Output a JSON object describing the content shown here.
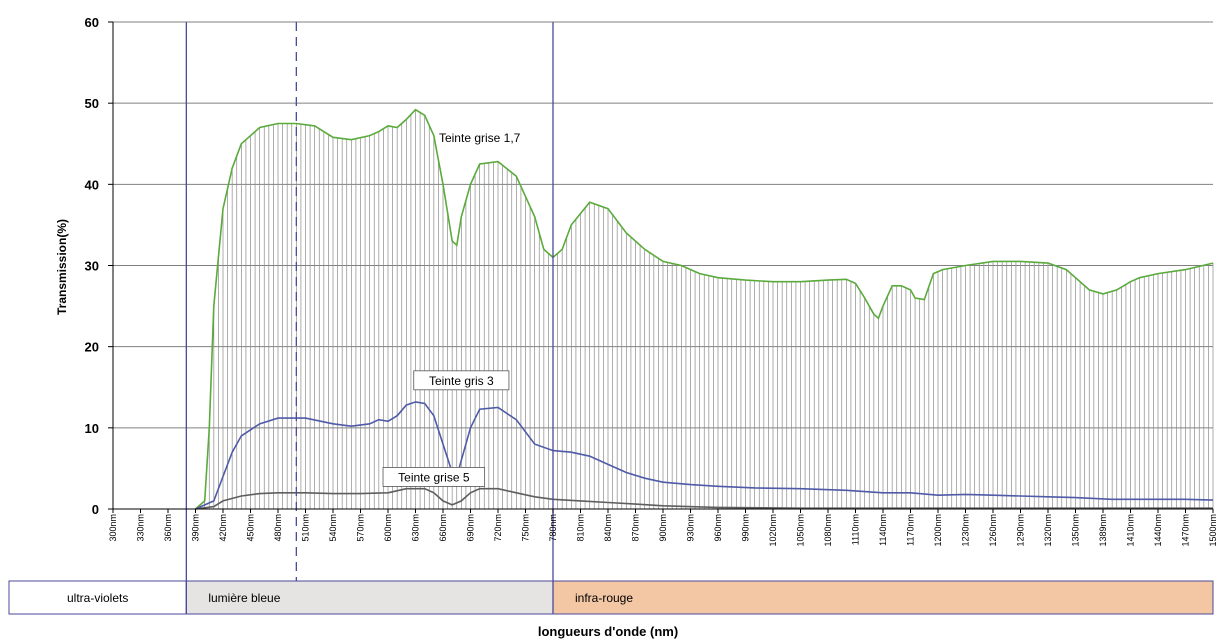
{
  "chart_data": {
    "type": "line",
    "title": "",
    "xlabel": "longueurs d'onde (nm)",
    "ylabel": "Transmission(%)",
    "ylim": [
      0,
      60
    ],
    "yticks": [
      0,
      10,
      20,
      30,
      40,
      50,
      60
    ],
    "xlim": [
      300,
      1500
    ],
    "xtick_labels": [
      "300nm",
      "330nm",
      "360nm",
      "390nm",
      "420nm",
      "450nm",
      "480nm",
      "510nm",
      "540nm",
      "570nm",
      "600nm",
      "630nm",
      "660nm",
      "690nm",
      "720nm",
      "750nm",
      "780nm",
      "810nm",
      "840nm",
      "870nm",
      "900nm",
      "930nm",
      "960nm",
      "990nm",
      "1020nm",
      "1050nm",
      "1080nm",
      "1110nm",
      "1140nm",
      "1170nm",
      "1200nm",
      "1230nm",
      "1260nm",
      "1290nm",
      "1320nm",
      "1350nm",
      "1389nm",
      "1410nm",
      "1440nm",
      "1470nm",
      "1500nm"
    ],
    "grid": true,
    "legend": "none",
    "vertical_markers": [
      {
        "x": 380,
        "style": "solid"
      },
      {
        "x": 500,
        "style": "dashed"
      },
      {
        "x": 780,
        "style": "solid"
      }
    ],
    "bands": [
      {
        "label": "ultra-violets",
        "from": 300,
        "to": 380,
        "color": "#ffffff"
      },
      {
        "label": "lumière bleue",
        "from": 380,
        "to": 780,
        "color": "#e6e3e3"
      },
      {
        "label": "infra-rouge",
        "from": 780,
        "to": 1500,
        "color": "#f4c7a4"
      }
    ],
    "series": [
      {
        "name": "Teinte grise 1,7",
        "color": "#5aaa3c",
        "points": [
          [
            390,
            0
          ],
          [
            400,
            1
          ],
          [
            405,
            10
          ],
          [
            410,
            25
          ],
          [
            420,
            37
          ],
          [
            430,
            42
          ],
          [
            440,
            45
          ],
          [
            460,
            47
          ],
          [
            480,
            47.5
          ],
          [
            500,
            47.5
          ],
          [
            520,
            47.2
          ],
          [
            540,
            45.8
          ],
          [
            560,
            45.5
          ],
          [
            580,
            46
          ],
          [
            590,
            46.5
          ],
          [
            600,
            47.2
          ],
          [
            610,
            47
          ],
          [
            620,
            48
          ],
          [
            630,
            49.2
          ],
          [
            640,
            48.5
          ],
          [
            650,
            46
          ],
          [
            660,
            40
          ],
          [
            670,
            33
          ],
          [
            675,
            32.5
          ],
          [
            680,
            36
          ],
          [
            690,
            40
          ],
          [
            700,
            42.5
          ],
          [
            720,
            42.8
          ],
          [
            740,
            41
          ],
          [
            760,
            36
          ],
          [
            770,
            32
          ],
          [
            780,
            31
          ],
          [
            790,
            32
          ],
          [
            800,
            35
          ],
          [
            820,
            37.8
          ],
          [
            840,
            37
          ],
          [
            860,
            34
          ],
          [
            880,
            32
          ],
          [
            900,
            30.5
          ],
          [
            920,
            30
          ],
          [
            940,
            29
          ],
          [
            960,
            28.5
          ],
          [
            990,
            28.2
          ],
          [
            1020,
            28
          ],
          [
            1050,
            28
          ],
          [
            1080,
            28.2
          ],
          [
            1100,
            28.3
          ],
          [
            1110,
            27.8
          ],
          [
            1120,
            26
          ],
          [
            1130,
            24
          ],
          [
            1135,
            23.5
          ],
          [
            1140,
            25
          ],
          [
            1150,
            27.5
          ],
          [
            1160,
            27.5
          ],
          [
            1170,
            27
          ],
          [
            1175,
            26
          ],
          [
            1185,
            25.8
          ],
          [
            1195,
            29
          ],
          [
            1205,
            29.5
          ],
          [
            1230,
            30
          ],
          [
            1260,
            30.5
          ],
          [
            1290,
            30.5
          ],
          [
            1320,
            30.3
          ],
          [
            1340,
            29.5
          ],
          [
            1350,
            28.5
          ],
          [
            1365,
            27
          ],
          [
            1380,
            26.5
          ],
          [
            1395,
            27
          ],
          [
            1410,
            28
          ],
          [
            1420,
            28.5
          ],
          [
            1440,
            29
          ],
          [
            1470,
            29.5
          ],
          [
            1500,
            30.3
          ]
        ]
      },
      {
        "name": "Teinte gris 3",
        "color": "#4f5aa8",
        "points": [
          [
            390,
            0
          ],
          [
            410,
            1
          ],
          [
            420,
            4
          ],
          [
            430,
            7
          ],
          [
            440,
            9
          ],
          [
            460,
            10.5
          ],
          [
            480,
            11.2
          ],
          [
            510,
            11.2
          ],
          [
            540,
            10.5
          ],
          [
            560,
            10.2
          ],
          [
            580,
            10.5
          ],
          [
            590,
            11
          ],
          [
            600,
            10.8
          ],
          [
            610,
            11.5
          ],
          [
            620,
            12.8
          ],
          [
            630,
            13.2
          ],
          [
            640,
            13
          ],
          [
            650,
            11.5
          ],
          [
            660,
            8
          ],
          [
            670,
            4.5
          ],
          [
            675,
            4
          ],
          [
            680,
            6
          ],
          [
            690,
            10
          ],
          [
            700,
            12.3
          ],
          [
            720,
            12.5
          ],
          [
            740,
            11
          ],
          [
            760,
            8
          ],
          [
            780,
            7.2
          ],
          [
            800,
            7
          ],
          [
            820,
            6.5
          ],
          [
            840,
            5.5
          ],
          [
            860,
            4.5
          ],
          [
            880,
            3.8
          ],
          [
            900,
            3.3
          ],
          [
            930,
            3
          ],
          [
            960,
            2.8
          ],
          [
            1000,
            2.6
          ],
          [
            1050,
            2.5
          ],
          [
            1100,
            2.3
          ],
          [
            1140,
            2
          ],
          [
            1170,
            2
          ],
          [
            1200,
            1.7
          ],
          [
            1230,
            1.8
          ],
          [
            1260,
            1.7
          ],
          [
            1290,
            1.6
          ],
          [
            1320,
            1.5
          ],
          [
            1350,
            1.4
          ],
          [
            1389,
            1.2
          ],
          [
            1410,
            1.2
          ],
          [
            1440,
            1.2
          ],
          [
            1470,
            1.2
          ],
          [
            1500,
            1.1
          ]
        ]
      },
      {
        "name": "Teinte grise 5",
        "color": "#5e5e5e",
        "points": [
          [
            390,
            0
          ],
          [
            410,
            0.3
          ],
          [
            420,
            1
          ],
          [
            440,
            1.6
          ],
          [
            460,
            1.9
          ],
          [
            480,
            2
          ],
          [
            510,
            2
          ],
          [
            540,
            1.9
          ],
          [
            570,
            1.9
          ],
          [
            600,
            2
          ],
          [
            620,
            2.5
          ],
          [
            640,
            2.5
          ],
          [
            650,
            2
          ],
          [
            660,
            1
          ],
          [
            670,
            0.5
          ],
          [
            680,
            1
          ],
          [
            690,
            2
          ],
          [
            700,
            2.5
          ],
          [
            720,
            2.5
          ],
          [
            740,
            2
          ],
          [
            760,
            1.5
          ],
          [
            780,
            1.2
          ],
          [
            810,
            1
          ],
          [
            840,
            0.8
          ],
          [
            870,
            0.6
          ],
          [
            900,
            0.4
          ],
          [
            960,
            0.2
          ],
          [
            1050,
            0.1
          ],
          [
            1200,
            0.1
          ],
          [
            1350,
            0.1
          ],
          [
            1500,
            0.1
          ]
        ]
      }
    ],
    "annotations": [
      {
        "text": "Teinte grise 1,7",
        "x": 700,
        "y": 45.2,
        "boxed": false
      },
      {
        "text": "Teinte gris 3",
        "x": 680,
        "y": 15.3,
        "boxed": true
      },
      {
        "text": "Teinte grise 5",
        "x": 650,
        "y": 3.4,
        "boxed": true
      }
    ]
  }
}
